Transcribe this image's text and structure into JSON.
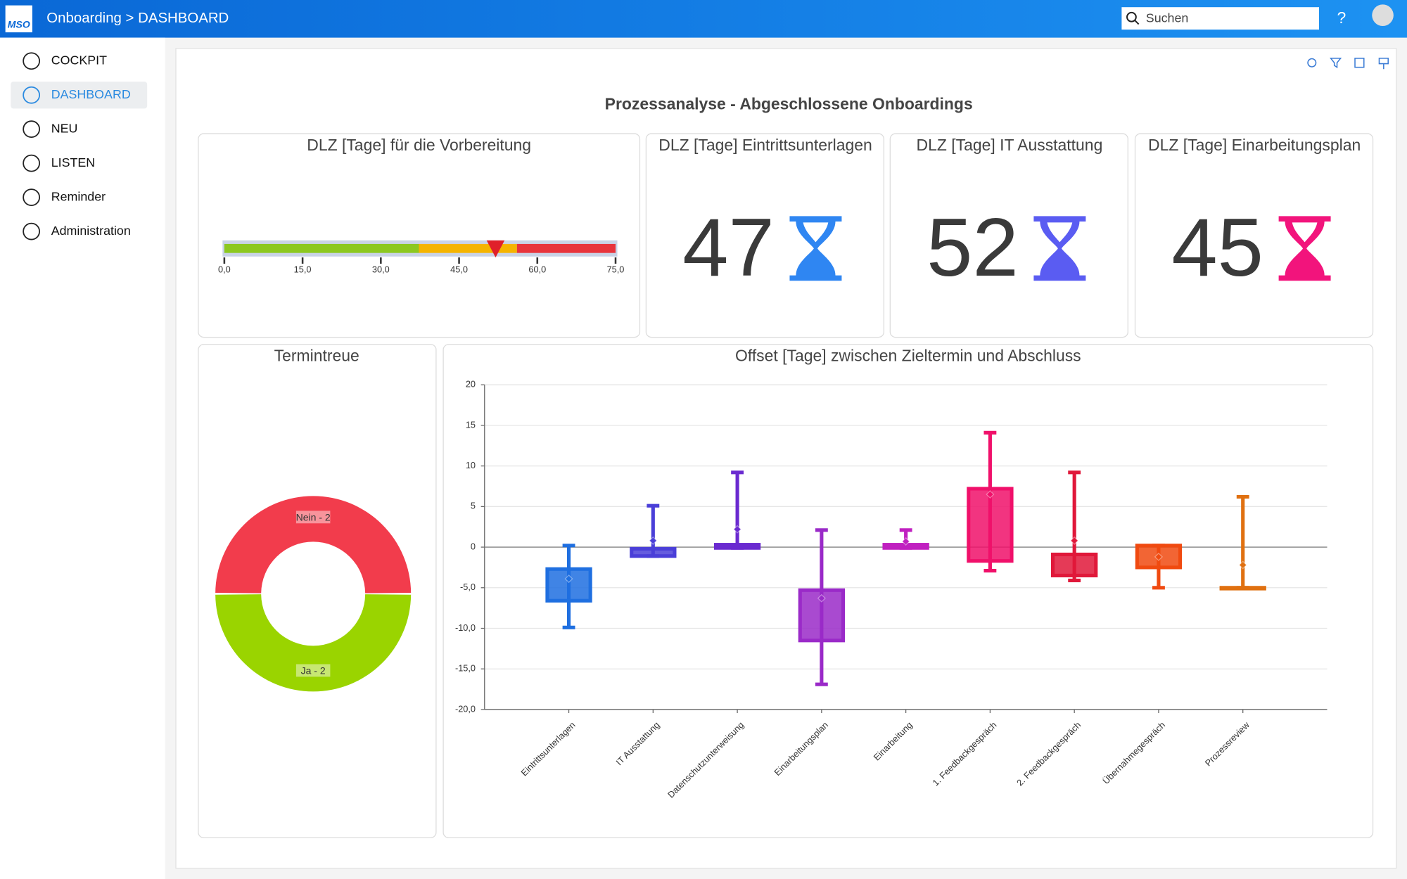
{
  "header": {
    "logo": "MSO",
    "breadcrumb": "Onboarding > DASHBOARD",
    "search": "Suchen",
    "help": "?"
  },
  "sidebar": {
    "items": [
      "COCKPIT",
      "DASHBOARD",
      "NEU",
      "LISTEN",
      "Reminder",
      "Administration"
    ],
    "active": 1
  },
  "dashboard": {
    "title": "Prozessanalyse - Abgeschlossene Onboardings",
    "gauge": {
      "title": "DLZ [Tage] für die Vorbereitung",
      "value": 52,
      "marker_color": "#e0202a",
      "xlim": [
        0,
        75
      ],
      "xticks": [
        {
          "value": 0,
          "label": "0,0"
        },
        {
          "value": 15,
          "label": "15,0"
        },
        {
          "value": 30,
          "label": "30,0"
        },
        {
          "value": 45,
          "label": "45,0"
        },
        {
          "value": 60,
          "label": "60,0"
        },
        {
          "value": 75,
          "label": "75,0"
        }
      ],
      "bands": [
        {
          "from": 0,
          "to": 37.3,
          "color": "#8cc820"
        },
        {
          "from": 37.3,
          "to": 56.1,
          "color": "#f5b400"
        },
        {
          "from": 56.1,
          "to": 75,
          "color": "#e8343c"
        }
      ]
    },
    "kpis": [
      {
        "title": "DLZ [Tage] Eintrittsunterlagen",
        "value": 47,
        "color": "#2f86f2"
      },
      {
        "title": "DLZ [Tage] IT Ausstattung",
        "value": 52,
        "color": "#5a5cf2"
      },
      {
        "title": "DLZ [Tage] Einarbeitungsplan",
        "value": 45,
        "color": "#f2147c"
      }
    ],
    "donut": {
      "title": "Termintreue",
      "categories": [
        "Nein",
        "Ja"
      ],
      "values": [
        2,
        2
      ],
      "value_labels": [
        "Nein - 2",
        "Ja - 2"
      ],
      "colors": [
        "#f23c4c",
        "#9ad400"
      ]
    },
    "boxplot": {
      "type": "box",
      "title": "Offset [Tage] zwischen Zieltermin und Abschluss",
      "ylim": [
        -20,
        20
      ],
      "yticks": [
        20,
        15,
        10,
        5,
        0,
        {
          "value": -5,
          "label": "-5,0"
        },
        {
          "value": -10,
          "label": "-10,0"
        },
        {
          "value": -15,
          "label": "-15,0"
        },
        {
          "value": -20,
          "label": "-20,0"
        }
      ],
      "categories": [
        "Eintrittsunterlagen",
        "IT Ausstattung",
        "Datenschutzunterweisung",
        "Einarbeitungsplan",
        "Einarbeitung",
        "1. Feedbackgespräch",
        "2. Feedbackgespräch",
        "Übernahmegespräch",
        "Prozessreview"
      ],
      "colors": [
        "#1f6fe0",
        "#4a3fd8",
        "#6a2ad0",
        "#9a2ac8",
        "#c020c0",
        "#f0106a",
        "#e0183a",
        "#f04a10",
        "#e07010"
      ],
      "min": [
        -9.9,
        -1.1,
        -0.1,
        -16.9,
        -0.1,
        -2.9,
        -4.1,
        -5.0,
        -5.0
      ],
      "q1": [
        -6.6,
        -1.1,
        -0.1,
        -11.5,
        -0.1,
        -1.7,
        -3.5,
        -2.5,
        -5.0
      ],
      "q3": [
        -2.7,
        -0.2,
        0.3,
        -5.3,
        0.3,
        7.2,
        -0.9,
        0.2,
        -5.0
      ],
      "max": [
        0.2,
        5.1,
        9.2,
        2.1,
        2.1,
        14.1,
        9.2,
        0.2,
        6.2
      ],
      "mean": [
        -3.9,
        0.8,
        2.2,
        -6.3,
        0.7,
        6.5,
        0.8,
        -1.2,
        -2.2
      ]
    }
  }
}
